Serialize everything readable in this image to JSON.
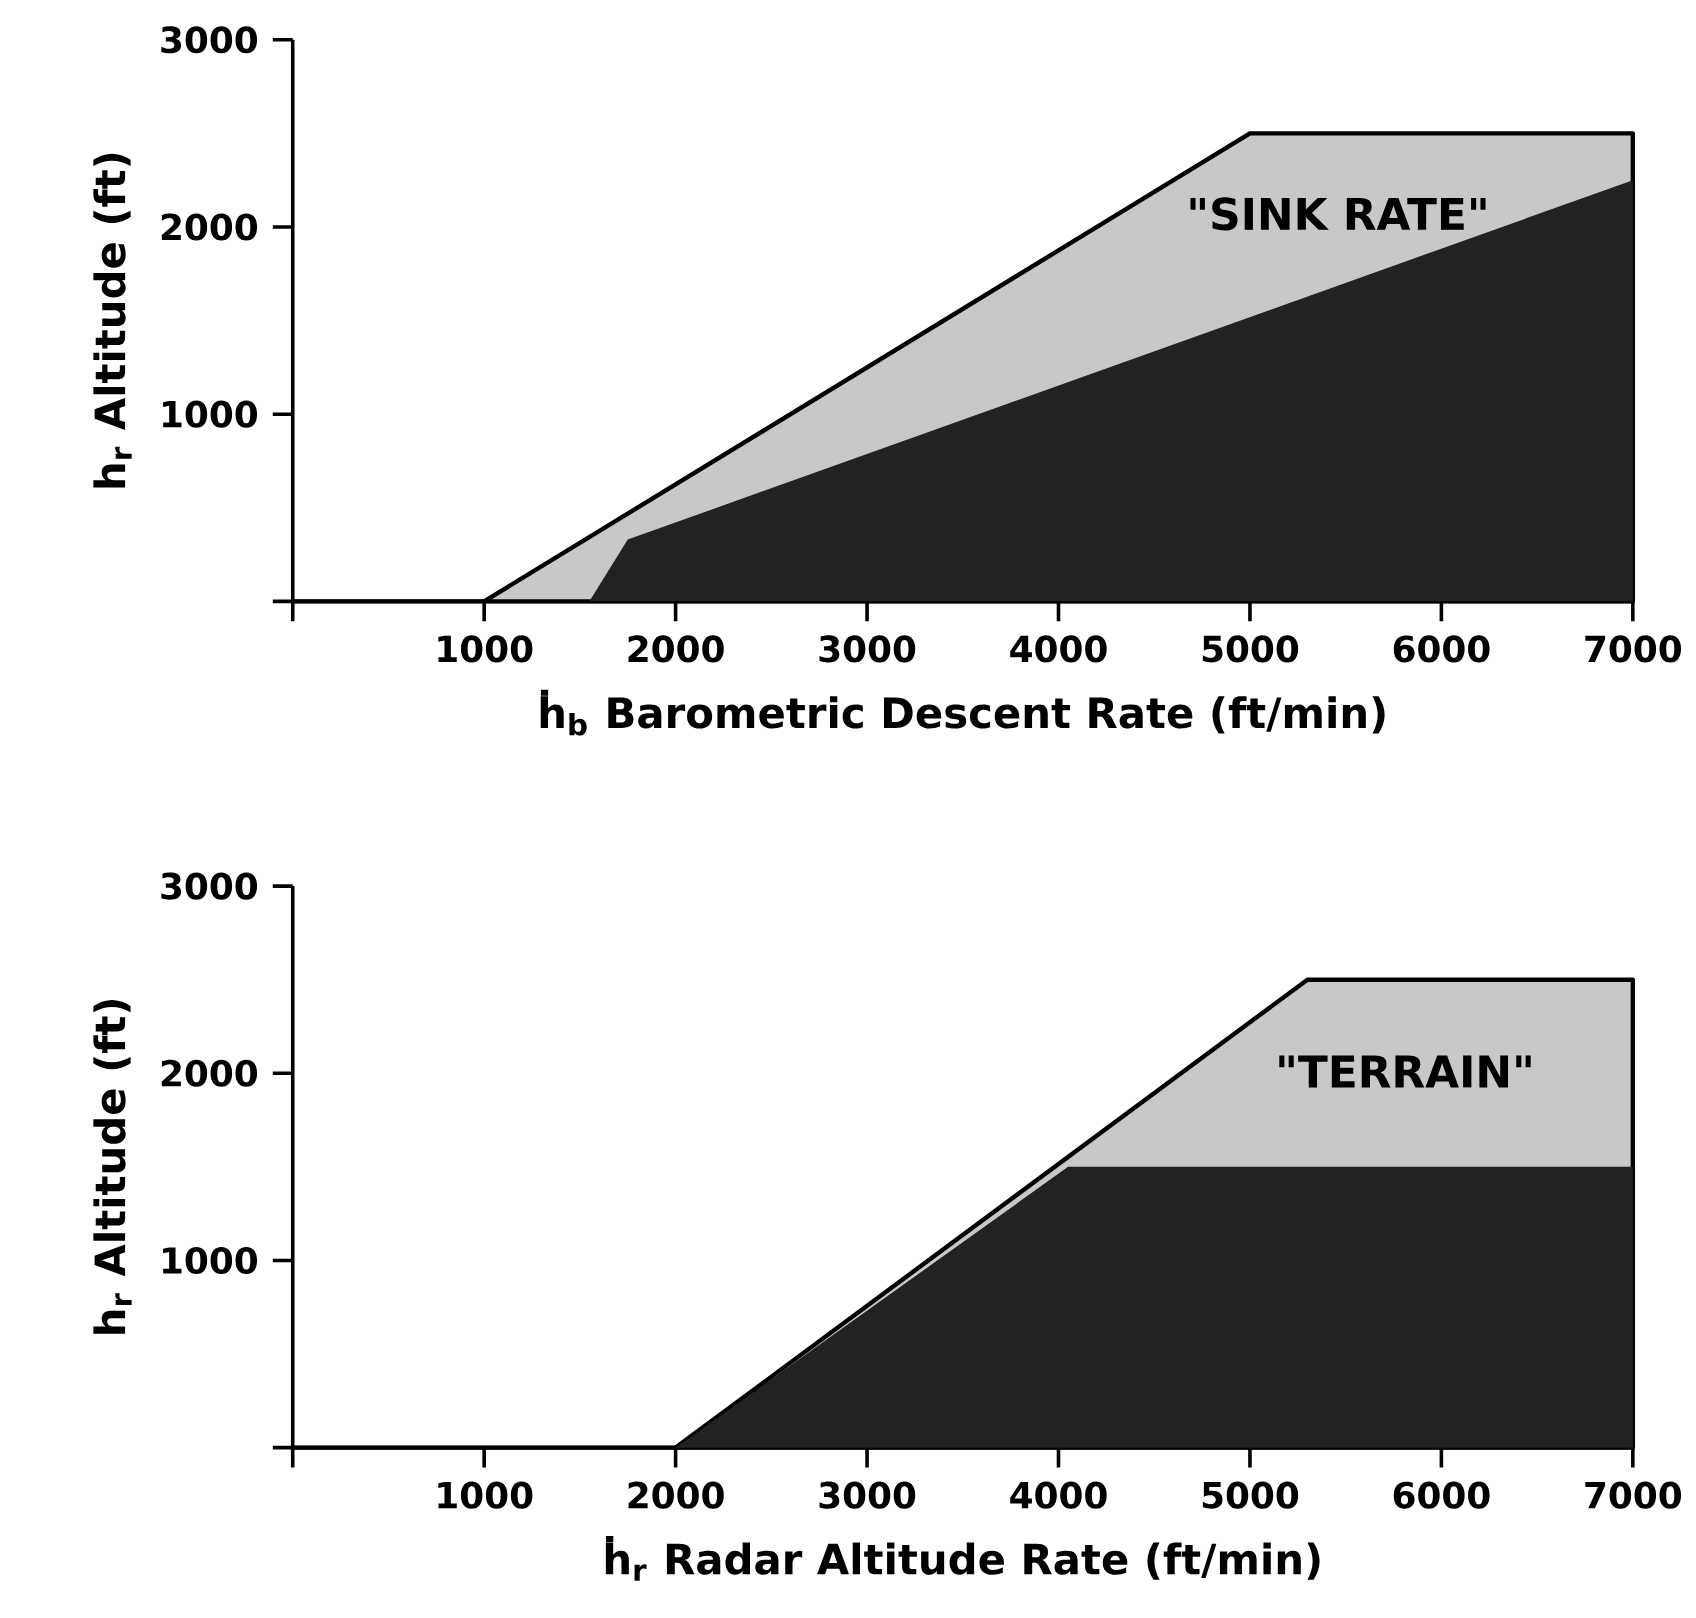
{
  "chart_data": [
    {
      "type": "area",
      "xlabel": "ḣ$_{b}$ Barometric Descent Rate (ft/min)",
      "ylabel": "h$_{r}$ Altitude (ft)",
      "xlim": [
        0,
        7000
      ],
      "ylim": [
        0,
        3000
      ],
      "xticks": [
        {
          "value": 0,
          "label": null
        },
        1000,
        2000,
        3000,
        4000,
        5000,
        6000,
        7000
      ],
      "yticks": [
        {
          "value": 0,
          "label": null
        },
        1000,
        2000,
        3000
      ],
      "series": [
        {
          "color": "#c8c8c8",
          "x": [
            0,
            1000,
            5000,
            7000
          ],
          "values": [
            0,
            0,
            2500,
            2500
          ]
        },
        {
          "color": "#222222",
          "x": [
            1550,
            1750,
            7000
          ],
          "values": [
            0,
            330,
            2250
          ]
        }
      ],
      "annotations": [
        "\"SINK RATE\""
      ]
    },
    {
      "type": "area",
      "xlabel": "ḣ$_{r}$ Radar Altitude Rate (ft/min)",
      "ylabel": "h$_{r}$ Altitude (ft)",
      "xlim": [
        0,
        7000
      ],
      "ylim": [
        0,
        3000
      ],
      "xticks": [
        {
          "value": 0,
          "label": null
        },
        1000,
        2000,
        3000,
        4000,
        5000,
        6000,
        7000
      ],
      "yticks": [
        {
          "value": 0,
          "label": null
        },
        1000,
        2000,
        3000
      ],
      "series": [
        {
          "color": "#c8c8c8",
          "x": [
            0,
            2000,
            5300,
            7000
          ],
          "values": [
            0,
            0,
            2500,
            2500
          ]
        },
        {
          "color": "#222222",
          "x": [
            2000,
            4050,
            7000
          ],
          "values": [
            0,
            1500,
            1500
          ]
        }
      ],
      "annotations": [
        "\"TERRAIN\""
      ]
    }
  ]
}
